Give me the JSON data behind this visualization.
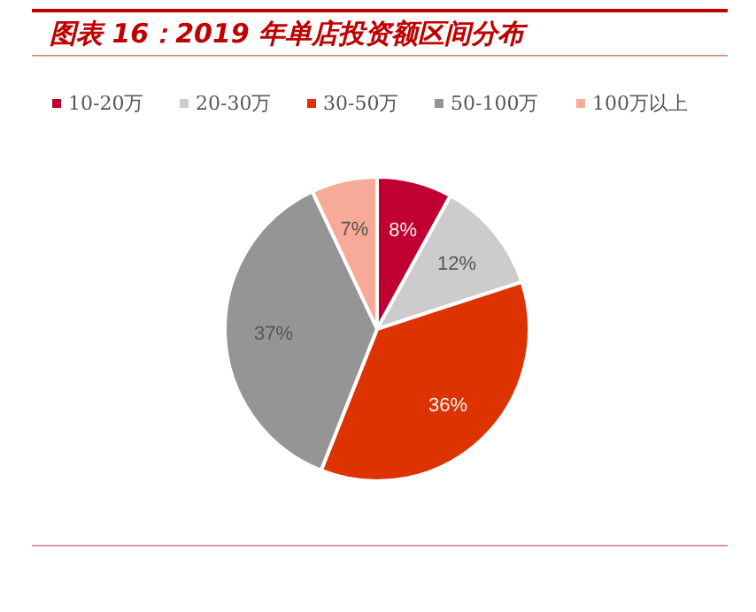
{
  "chart_data": {
    "type": "pie",
    "title": "图表 16：2019 年单店投资额区间分布",
    "categories": [
      "10-20万",
      "20-30万",
      "30-50万",
      "50-100万",
      "100万以上"
    ],
    "values": [
      8,
      12,
      36,
      37,
      7
    ],
    "colors": [
      "#c00030",
      "#cccccc",
      "#dd3300",
      "#959595",
      "#f8aa98"
    ],
    "value_labels": [
      "8%",
      "12%",
      "36%",
      "37%",
      "7%"
    ],
    "legend": "top"
  }
}
